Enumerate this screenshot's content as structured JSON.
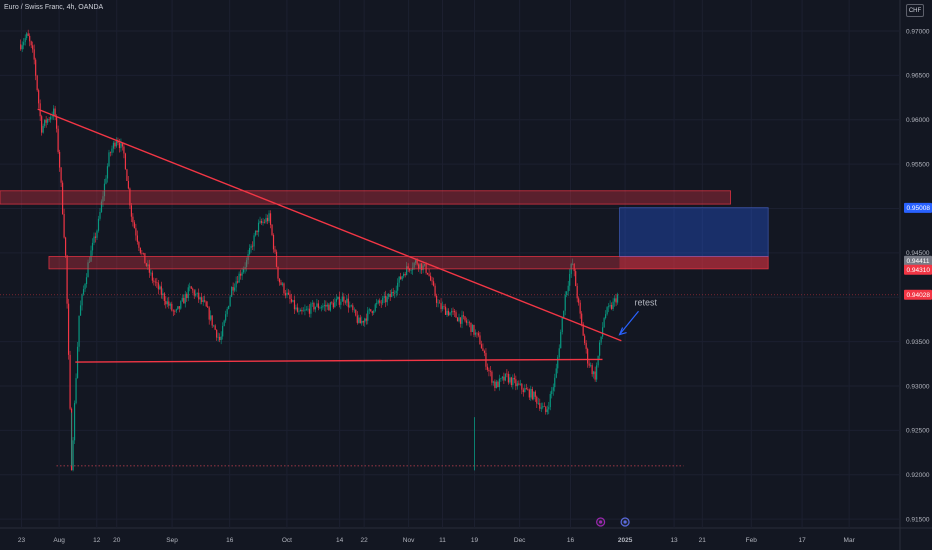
{
  "header": {
    "title": "Euro / Swiss Franc, 4h, OANDA",
    "currency": "CHF"
  },
  "chart_data": {
    "type": "candlestick",
    "symbol": "EURCHF",
    "timeframe": "4h",
    "y_axis": {
      "ticks": [
        "0.97000",
        "0.96500",
        "0.96000",
        "0.95500",
        "0.95000",
        "0.94500",
        "0.94000",
        "0.93500",
        "0.93000",
        "0.92500",
        "0.92000",
        "0.91500"
      ],
      "ylim": [
        0.914,
        0.9735
      ]
    },
    "x_axis": {
      "ticks": [
        {
          "label": "23",
          "x": 0.02
        },
        {
          "label": "Aug",
          "x": 1.02
        },
        {
          "label": "12",
          "x": 2.02
        },
        {
          "label": "20",
          "x": 2.55
        },
        {
          "label": "Sep",
          "x": 4.02
        },
        {
          "label": "16",
          "x": 5.55
        },
        {
          "label": "Oct",
          "x": 7.07
        },
        {
          "label": "14",
          "x": 8.47
        },
        {
          "label": "22",
          "x": 9.12
        },
        {
          "label": "Nov",
          "x": 10.3
        },
        {
          "label": "11",
          "x": 11.2
        },
        {
          "label": "19",
          "x": 12.05
        },
        {
          "label": "Dec",
          "x": 13.25
        },
        {
          "label": "16",
          "x": 14.6
        },
        {
          "label": "2025",
          "x": 16.05
        },
        {
          "label": "13",
          "x": 17.35
        },
        {
          "label": "21",
          "x": 18.1
        },
        {
          "label": "Feb",
          "x": 19.4
        },
        {
          "label": "17",
          "x": 20.75
        },
        {
          "label": "Mar",
          "x": 22.0
        }
      ],
      "xlim": [
        -0.55,
        23.35
      ]
    },
    "price_path": [
      [
        0.0,
        0.9685
      ],
      [
        0.18,
        0.9695
      ],
      [
        0.35,
        0.967
      ],
      [
        0.55,
        0.959
      ],
      [
        0.7,
        0.96
      ],
      [
        0.9,
        0.961
      ],
      [
        1.05,
        0.954
      ],
      [
        1.2,
        0.944
      ],
      [
        1.35,
        0.921
      ],
      [
        1.55,
        0.938
      ],
      [
        1.8,
        0.944
      ],
      [
        2.05,
        0.948
      ],
      [
        2.35,
        0.956
      ],
      [
        2.55,
        0.958
      ],
      [
        2.75,
        0.956
      ],
      [
        2.95,
        0.949
      ],
      [
        3.2,
        0.945
      ],
      [
        3.5,
        0.942
      ],
      [
        3.8,
        0.94
      ],
      [
        4.1,
        0.938
      ],
      [
        4.5,
        0.941
      ],
      [
        4.9,
        0.939
      ],
      [
        5.3,
        0.935
      ],
      [
        5.6,
        0.941
      ],
      [
        6.0,
        0.944
      ],
      [
        6.3,
        0.948
      ],
      [
        6.6,
        0.949
      ],
      [
        6.85,
        0.942
      ],
      [
        7.1,
        0.94
      ],
      [
        7.4,
        0.938
      ],
      [
        7.8,
        0.939
      ],
      [
        8.2,
        0.939
      ],
      [
        8.6,
        0.94
      ],
      [
        9.0,
        0.937
      ],
      [
        9.4,
        0.939
      ],
      [
        9.8,
        0.94
      ],
      [
        10.2,
        0.943
      ],
      [
        10.5,
        0.944
      ],
      [
        10.8,
        0.943
      ],
      [
        11.1,
        0.939
      ],
      [
        11.5,
        0.938
      ],
      [
        11.9,
        0.937
      ],
      [
        12.2,
        0.935
      ],
      [
        12.4,
        0.932
      ],
      [
        12.6,
        0.93
      ],
      [
        12.9,
        0.931
      ],
      [
        13.2,
        0.93
      ],
      [
        13.6,
        0.929
      ],
      [
        13.95,
        0.927
      ],
      [
        14.2,
        0.931
      ],
      [
        14.45,
        0.94
      ],
      [
        14.65,
        0.944
      ],
      [
        14.85,
        0.938
      ],
      [
        15.05,
        0.933
      ],
      [
        15.25,
        0.931
      ],
      [
        15.5,
        0.938
      ],
      [
        15.7,
        0.939
      ],
      [
        15.85,
        0.9402
      ]
    ],
    "zones": [
      {
        "kind": "resistance",
        "x0": -0.55,
        "x1": 18.85,
        "y0": 0.9505,
        "y1": 0.952
      },
      {
        "kind": "resistance",
        "x0": 0.75,
        "x1": 19.85,
        "y0": 0.9432,
        "y1": 0.9446
      },
      {
        "kind": "target",
        "x0": 15.9,
        "x1": 19.85,
        "y0": 0.9446,
        "y1": 0.9501
      }
    ],
    "lines": [
      {
        "name": "descending trendline",
        "x0": 0.45,
        "y0": 0.9612,
        "x1": 15.95,
        "y1": 0.9351
      },
      {
        "name": "horizontal support",
        "x0": 1.45,
        "y0": 0.9327,
        "x1": 15.45,
        "y1": 0.933
      },
      {
        "name": "low line",
        "x0": 0.95,
        "y0": 0.921,
        "x1": 17.6,
        "y1": 0.921
      }
    ],
    "price_labels": [
      {
        "value": "0.95008",
        "price": 0.95008,
        "color": "#2962ff"
      },
      {
        "value": "0.94411",
        "price": 0.94411,
        "color": "#787b86"
      },
      {
        "value": "0.94310",
        "price": 0.9431,
        "color": "#f23645"
      },
      {
        "value": "0.94028",
        "price": 0.94028,
        "color": "#f23645"
      }
    ],
    "annotations": [
      {
        "text": "retest",
        "x": 16.3,
        "y": 0.9391
      }
    ],
    "current_price": 0.94028
  }
}
